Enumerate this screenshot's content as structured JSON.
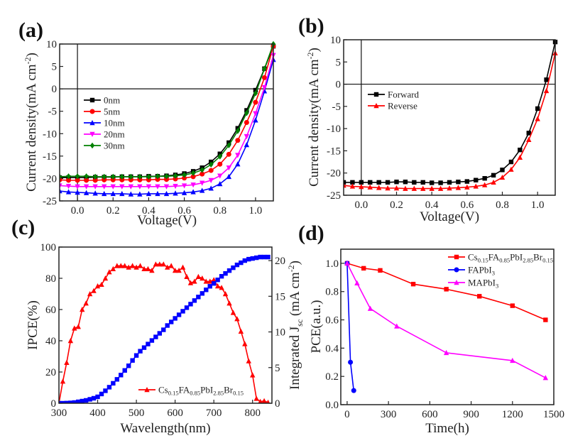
{
  "chart_data": [
    {
      "id": "a",
      "panel_label": "(a)",
      "type": "line",
      "xlabel": "Voltage(V)",
      "ylabel": "Current density(mA cm",
      "ylabel_sup": "-2",
      "ylabel_end": ")",
      "xlim": [
        -0.1,
        1.1
      ],
      "ylim": [
        -25,
        10
      ],
      "xticks": [
        0.0,
        0.2,
        0.4,
        0.6,
        0.8,
        1.0
      ],
      "xtick_labels": [
        "0.0",
        "0.2",
        "0.4",
        "0.6",
        "0.8",
        "1.0"
      ],
      "yticks": [
        -25,
        -20,
        -15,
        -10,
        -5,
        0,
        5,
        10
      ],
      "ytick_labels": [
        "-25",
        "-20",
        "-15",
        "-10",
        "-5",
        "0",
        "5",
        "10"
      ],
      "zero_lines": true,
      "legend": "upper-left",
      "x": [
        -0.1,
        -0.05,
        0,
        0.05,
        0.1,
        0.15,
        0.2,
        0.25,
        0.3,
        0.35,
        0.4,
        0.45,
        0.5,
        0.55,
        0.6,
        0.65,
        0.7,
        0.75,
        0.8,
        0.85,
        0.9,
        0.95,
        1.0,
        1.05,
        1.1
      ],
      "series": [
        {
          "name": "0nm",
          "color": "#000000",
          "marker": "square",
          "values": [
            -19.8,
            -19.8,
            -19.8,
            -19.8,
            -19.7,
            -19.7,
            -19.7,
            -19.6,
            -19.6,
            -19.6,
            -19.5,
            -19.5,
            -19.4,
            -19.2,
            -18.9,
            -18.4,
            -17.6,
            -16.3,
            -14.5,
            -12.0,
            -8.8,
            -4.8,
            -0.3,
            4.5,
            9.5
          ]
        },
        {
          "name": "5nm",
          "color": "#ff0000",
          "marker": "circle",
          "values": [
            -20.3,
            -20.4,
            -20.4,
            -20.4,
            -20.4,
            -20.3,
            -20.3,
            -20.3,
            -20.3,
            -20.3,
            -20.3,
            -20.2,
            -20.2,
            -20.1,
            -19.9,
            -19.6,
            -19.0,
            -18.2,
            -16.8,
            -14.6,
            -11.5,
            -7.5,
            -3.0,
            2.5,
            9.5
          ]
        },
        {
          "name": "10nm",
          "color": "#0000ff",
          "marker": "triangle-up",
          "values": [
            -22.8,
            -23.0,
            -23.1,
            -23.2,
            -23.3,
            -23.4,
            -23.4,
            -23.4,
            -23.5,
            -23.5,
            -23.4,
            -23.4,
            -23.4,
            -23.3,
            -23.2,
            -23.0,
            -22.7,
            -22.2,
            -21.2,
            -19.6,
            -16.8,
            -12.5,
            -7.0,
            -0.5,
            6.5
          ]
        },
        {
          "name": "20nm",
          "color": "#ff00ff",
          "marker": "triangle-down",
          "values": [
            -21.6,
            -21.7,
            -21.8,
            -21.8,
            -21.8,
            -21.8,
            -21.8,
            -21.8,
            -21.8,
            -21.8,
            -21.8,
            -21.8,
            -21.8,
            -21.7,
            -21.6,
            -21.4,
            -21.0,
            -20.4,
            -19.4,
            -17.6,
            -14.8,
            -10.6,
            -5.5,
            0.3,
            7.5
          ]
        },
        {
          "name": "30nm",
          "color": "#008000",
          "marker": "diamond",
          "values": [
            -19.6,
            -19.5,
            -19.5,
            -19.5,
            -19.6,
            -19.6,
            -19.6,
            -19.6,
            -19.6,
            -19.6,
            -19.6,
            -19.5,
            -19.5,
            -19.4,
            -19.2,
            -18.8,
            -18.1,
            -16.9,
            -15.1,
            -12.6,
            -9.4,
            -5.4,
            -1.0,
            4.5,
            10.0
          ]
        }
      ]
    },
    {
      "id": "b",
      "panel_label": "(b)",
      "type": "line",
      "xlabel": "Voltage(V)",
      "ylabel": "Current density(mA cm",
      "ylabel_sup": "-2",
      "ylabel_end": ")",
      "xlim": [
        -0.1,
        1.1
      ],
      "ylim": [
        -25,
        10
      ],
      "xticks": [
        0.0,
        0.2,
        0.4,
        0.6,
        0.8,
        1.0
      ],
      "xtick_labels": [
        "0.0",
        "0.2",
        "0.4",
        "0.6",
        "0.8",
        "1.0"
      ],
      "yticks": [
        -25,
        -20,
        -15,
        -10,
        -5,
        0,
        5,
        10
      ],
      "ytick_labels": [
        "-25",
        "-20",
        "-15",
        "-10",
        "-5",
        "0",
        "5",
        "10"
      ],
      "zero_lines": true,
      "legend": "upper-left",
      "x": [
        -0.1,
        -0.05,
        0,
        0.05,
        0.1,
        0.15,
        0.2,
        0.25,
        0.3,
        0.35,
        0.4,
        0.45,
        0.5,
        0.55,
        0.6,
        0.65,
        0.7,
        0.75,
        0.8,
        0.85,
        0.9,
        0.95,
        1.0,
        1.05,
        1.1
      ],
      "series": [
        {
          "name": "Forward",
          "color": "#000000",
          "marker": "square",
          "values": [
            -22.1,
            -22.1,
            -22.1,
            -22.1,
            -22.1,
            -22.1,
            -22.0,
            -22.0,
            -22.1,
            -22.1,
            -22.2,
            -22.2,
            -22.1,
            -22.0,
            -21.9,
            -21.6,
            -21.2,
            -20.5,
            -19.3,
            -17.5,
            -14.8,
            -11.0,
            -5.5,
            1.0,
            9.5
          ]
        },
        {
          "name": "Reverse",
          "color": "#ff0000",
          "marker": "triangle-up",
          "values": [
            -22.8,
            -23.0,
            -23.1,
            -23.2,
            -23.3,
            -23.4,
            -23.4,
            -23.5,
            -23.5,
            -23.5,
            -23.5,
            -23.5,
            -23.4,
            -23.3,
            -23.2,
            -23.0,
            -22.7,
            -22.1,
            -21.0,
            -19.2,
            -16.5,
            -12.5,
            -7.8,
            -1.5,
            7.0
          ]
        }
      ]
    },
    {
      "id": "c",
      "panel_label": "(c)",
      "type": "line",
      "xlabel": "Wavelength(nm)",
      "ylabel": "IPCE(%)",
      "y2label": "Integrated J",
      "y2label_sub": "sc",
      "y2label_mid": " (mA cm",
      "y2label_sup": "-2",
      "y2label_end": ")",
      "xlim": [
        300,
        850
      ],
      "ylim": [
        0,
        100
      ],
      "y2lim": [
        0,
        21.9
      ],
      "xticks": [
        300,
        400,
        500,
        600,
        700,
        800
      ],
      "xtick_labels": [
        "300",
        "400",
        "500",
        "600",
        "700",
        "800"
      ],
      "yticks": [
        0,
        20,
        40,
        60,
        80,
        100
      ],
      "ytick_labels": [
        "0",
        "20",
        "40",
        "60",
        "80",
        "100"
      ],
      "y2ticks": [
        0,
        5,
        10,
        15,
        20
      ],
      "y2tick_labels": [
        "0",
        "5",
        "10",
        "15",
        "20"
      ],
      "legend": "lower-center",
      "x": [
        300,
        310,
        320,
        330,
        340,
        350,
        360,
        370,
        380,
        390,
        400,
        410,
        420,
        430,
        440,
        450,
        460,
        470,
        480,
        490,
        500,
        510,
        520,
        530,
        540,
        550,
        560,
        570,
        580,
        590,
        600,
        610,
        620,
        630,
        640,
        650,
        660,
        670,
        680,
        690,
        700,
        710,
        720,
        730,
        740,
        750,
        760,
        770,
        780,
        790,
        800,
        810,
        820,
        830,
        840
      ],
      "series": [
        {
          "name": "Cs0.15FA0.85PbI2.85Br0.15",
          "label_parts": [
            [
              "Cs",
              0
            ],
            [
              "0.15",
              1
            ],
            [
              "FA",
              0
            ],
            [
              "0.85",
              1
            ],
            [
              "PbI",
              0
            ],
            [
              "2.85",
              1
            ],
            [
              "Br",
              0
            ],
            [
              "0.15",
              1
            ]
          ],
          "color": "#ff0000",
          "marker": "triangle-up",
          "axis": "left",
          "values": [
            0,
            14,
            26,
            40,
            48,
            49,
            60,
            64,
            70,
            72,
            75,
            76,
            80,
            84,
            86,
            88,
            88,
            88,
            87,
            88,
            87,
            88,
            86,
            86,
            85,
            89,
            89,
            89,
            87,
            88,
            85,
            85,
            87,
            81,
            77,
            78,
            81,
            80,
            78,
            78,
            79,
            75,
            74,
            70,
            64,
            58,
            54,
            46,
            38,
            27,
            18,
            3,
            1,
            1.5,
            0.5
          ]
        },
        {
          "name": "Integrated Jsc",
          "color": "#0000ff",
          "marker": "square",
          "axis": "right",
          "legend": false,
          "values": [
            0,
            0,
            0.02,
            0.05,
            0.1,
            0.2,
            0.3,
            0.4,
            0.55,
            0.7,
            0.9,
            1.3,
            1.75,
            2.25,
            2.8,
            3.35,
            3.95,
            4.6,
            5.25,
            6.0,
            6.7,
            7.3,
            7.8,
            8.3,
            8.8,
            9.3,
            9.8,
            10.3,
            10.9,
            11.4,
            11.9,
            12.4,
            12.9,
            13.4,
            13.9,
            14.4,
            14.9,
            15.4,
            15.9,
            16.4,
            16.8,
            17.3,
            17.8,
            18.2,
            18.6,
            19.0,
            19.4,
            19.7,
            20.0,
            20.2,
            20.3,
            20.4,
            20.5,
            20.5,
            20.5
          ]
        }
      ]
    },
    {
      "id": "d",
      "panel_label": "(d)",
      "type": "line",
      "xlabel": "Time(h)",
      "ylabel": "PCE(a.u.)",
      "xlim": [
        -46,
        1500
      ],
      "ylim": [
        0,
        1.1
      ],
      "xticks": [
        0,
        300,
        600,
        900,
        1200,
        1500
      ],
      "xtick_labels": [
        "0",
        "300",
        "600",
        "900",
        "1200",
        "1500"
      ],
      "yticks": [
        0,
        0.2,
        0.4,
        0.6,
        0.8,
        1.0
      ],
      "ytick_labels": [
        "0.0",
        "0.2",
        "0.4",
        "0.6",
        "0.8",
        "1.0"
      ],
      "legend": "upper-right",
      "series": [
        {
          "name": "Cs0.15FA0.85PbI2.85Br0.15",
          "label_parts": [
            [
              "Cs",
              0
            ],
            [
              "0.15",
              1
            ],
            [
              "FA",
              0
            ],
            [
              "0.85",
              1
            ],
            [
              "PbI",
              0
            ],
            [
              "2.85",
              1
            ],
            [
              "Br",
              0
            ],
            [
              "0.15",
              1
            ]
          ],
          "color": "#ff0000",
          "marker": "square",
          "x": [
            0,
            120,
            240,
            480,
            720,
            960,
            1200,
            1440
          ],
          "values": [
            1.0,
            0.965,
            0.95,
            0.853,
            0.817,
            0.767,
            0.7,
            0.6
          ]
        },
        {
          "name": "FAPbI3",
          "label_parts": [
            [
              "FAPbI",
              0
            ],
            [
              "3",
              1
            ]
          ],
          "color": "#0000ff",
          "marker": "circle",
          "x": [
            0,
            24,
            48
          ],
          "values": [
            1.0,
            0.3,
            0.1
          ]
        },
        {
          "name": "MAPbI3",
          "label_parts": [
            [
              "MAPbI",
              0
            ],
            [
              "3",
              1
            ]
          ],
          "color": "#ff00ff",
          "marker": "triangle-up",
          "x": [
            0,
            72,
            168,
            360,
            720,
            1200,
            1440
          ],
          "values": [
            1.0,
            0.86,
            0.68,
            0.555,
            0.367,
            0.312,
            0.19
          ]
        }
      ]
    }
  ]
}
